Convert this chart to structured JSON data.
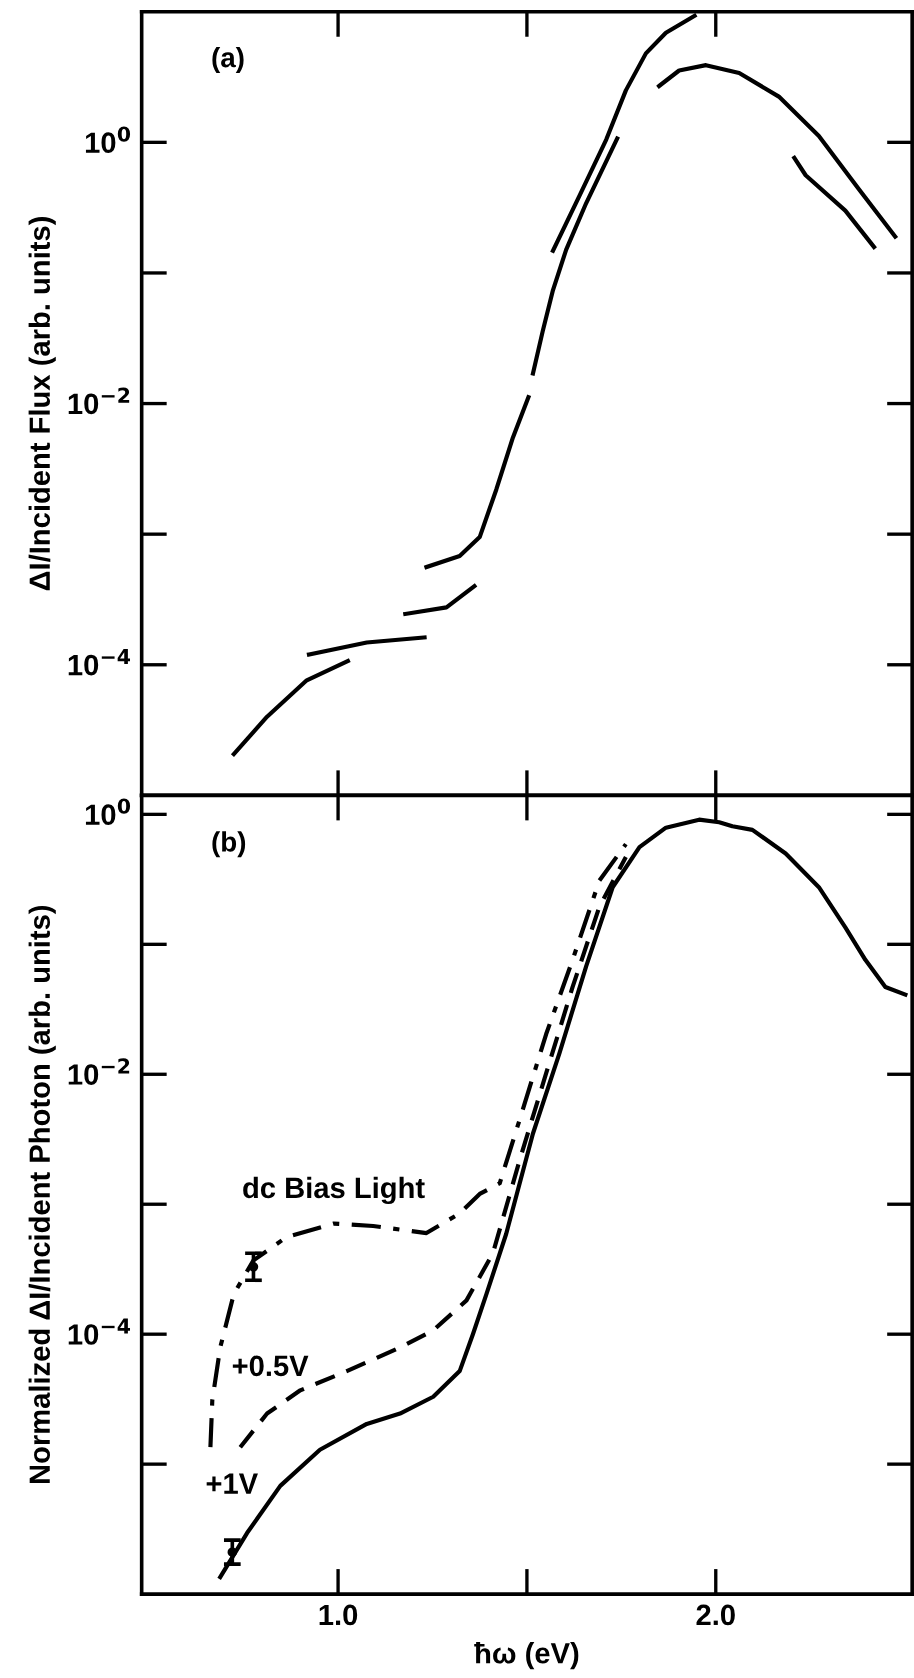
{
  "chart_data": [
    {
      "type": "line",
      "ylabel": "ΔI/Incident Flux (arb. units)",
      "log": "y",
      "xlim": [
        0.48,
        2.52
      ],
      "ylim": [
        1e-05,
        10
      ],
      "xticks": [
        {
          "value": 1.0,
          "label": null
        },
        {
          "value": 1.5,
          "label": null
        },
        {
          "value": 2.0,
          "label": null
        }
      ],
      "yticks": [
        {
          "value": 1,
          "label": "10$^{0}$"
        },
        {
          "value": 0.1,
          "label": null
        },
        {
          "value": 0.01,
          "label": "10$^{−2}$"
        },
        {
          "value": 0.001,
          "label": null
        },
        {
          "value": 0.0001,
          "label": "10$^{−4}$"
        }
      ],
      "tick_labels": "y",
      "grid": false,
      "legend": false,
      "annotations": [
        "(a)"
      ],
      "series": [
        {
          "color": "#000000",
          "line_style": "solid",
          "x": [
            0.724,
            0.812,
            0.917,
            1.026
          ],
          "values": [
            2.07e-05,
            4e-05,
            7.6e-05,
            0.000107
          ]
        },
        {
          "color": "#000000",
          "line_style": "solid",
          "x": [
            0.923,
            1.076,
            1.229
          ],
          "values": [
            0.00012,
            0.000148,
            0.000162
          ]
        },
        {
          "color": "#000000",
          "line_style": "solid",
          "x": [
            1.178,
            1.287,
            1.361
          ],
          "values": [
            0.000245,
            0.000275,
            0.0004
          ]
        },
        {
          "color": "#000000",
          "line_style": "solid",
          "x": [
            1.234,
            1.322,
            1.375,
            1.419,
            1.463,
            1.504
          ],
          "values": [
            0.00056,
            0.00068,
            0.00095,
            0.0022,
            0.0055,
            0.0112
          ]
        },
        {
          "color": "#000000",
          "line_style": "solid",
          "x": [
            1.516,
            1.542,
            1.569,
            1.604,
            1.657,
            1.739
          ],
          "values": [
            0.017,
            0.036,
            0.074,
            0.151,
            0.343,
            1.07
          ]
        },
        {
          "color": "#000000",
          "line_style": "solid",
          "x": [
            1.569,
            1.639,
            1.71,
            1.762,
            1.815,
            1.868,
            1.944
          ],
          "values": [
            0.148,
            0.389,
            1.05,
            2.5,
            4.8,
            6.9,
            9.3
          ]
        },
        {
          "color": "#000000",
          "line_style": "solid",
          "x": [
            1.85,
            1.903,
            1.974,
            2.062,
            2.167,
            2.273,
            2.379,
            2.475
          ],
          "values": [
            2.7,
            3.55,
            3.9,
            3.4,
            2.24,
            1.12,
            0.437,
            0.19
          ]
        },
        {
          "color": "#000000",
          "line_style": "solid",
          "x": [
            2.208,
            2.238,
            2.343,
            2.419
          ],
          "values": [
            0.76,
            0.56,
            0.3,
            0.158
          ]
        }
      ]
    },
    {
      "type": "line",
      "xlabel": "ħω (eV)",
      "ylabel": "Normalized ΔI/Incident Photon (arb. units)",
      "log": "y",
      "xlim": [
        0.48,
        2.52
      ],
      "ylim": [
        1e-06,
        1.4
      ],
      "xticks": [
        {
          "value": 1.0,
          "label": "1.0"
        },
        {
          "value": 1.5,
          "label": null
        },
        {
          "value": 2.0,
          "label": "2.0"
        }
      ],
      "yticks": [
        {
          "value": 1,
          "label": "10$^{0}$"
        },
        {
          "value": 0.1,
          "label": null
        },
        {
          "value": 0.01,
          "label": "10$^{−2}$"
        },
        {
          "value": 0.001,
          "label": null
        },
        {
          "value": 0.0001,
          "label": "10$^{−4}$"
        },
        {
          "value": 1e-05,
          "label": null
        }
      ],
      "grid": false,
      "legend": false,
      "annotations": [
        "(b)",
        {
          "text": "dc Bias Light",
          "x": 0.988,
          "y": 0.00071
        },
        {
          "text": "+0.5V",
          "x": 0.9,
          "y": 3.7e-05
        },
        {
          "text": "+1V",
          "x": 0.759,
          "y": 2.95e-06
        }
      ],
      "series": [
        {
          "color": "#000000",
          "line_style": "solid",
          "x": [
            0.688,
            0.759,
            0.847,
            0.952,
            1.076,
            1.164,
            1.252,
            1.322,
            1.357,
            1.393,
            1.445,
            1.516,
            1.586,
            1.657,
            1.727,
            1.798,
            1.868,
            1.956,
            2.009,
            2.044,
            2.097,
            2.185,
            2.273,
            2.343,
            2.396,
            2.449,
            2.502
          ],
          "values": [
            1.35e-06,
            2.95e-06,
            6.8e-06,
            1.29e-05,
            2.04e-05,
            2.45e-05,
            3.3e-05,
            5.2e-05,
            0.0001,
            0.000204,
            0.00059,
            0.0035,
            0.0145,
            0.068,
            0.275,
            0.56,
            0.79,
            0.91,
            0.87,
            0.81,
            0.76,
            0.5,
            0.275,
            0.135,
            0.076,
            0.047,
            0.041
          ]
        },
        {
          "color": "#000000",
          "line_style": "dashed",
          "x": [
            0.741,
            0.812,
            0.9,
            1.023,
            1.164,
            1.252,
            1.34,
            1.41,
            1.481,
            1.551,
            1.621,
            1.692,
            1.762
          ],
          "values": [
            1.35e-05,
            2.45e-05,
            3.7e-05,
            5.2e-05,
            7.9e-05,
            0.000107,
            0.000182,
            0.00042,
            0.0022,
            0.0102,
            0.047,
            0.195,
            0.47
          ]
        },
        {
          "color": "#000000",
          "line_style": "dashdot",
          "x": [
            0.662,
            0.667,
            0.688,
            0.724,
            0.776,
            0.864,
            0.988,
            1.093,
            1.234,
            1.322,
            1.375,
            1.428,
            1.481,
            1.551,
            1.621,
            1.692,
            1.762
          ],
          "values": [
            1.35e-05,
            3.1e-05,
            7.9e-05,
            0.000204,
            0.00037,
            0.00056,
            0.00071,
            0.00068,
            0.0006,
            0.00085,
            0.0012,
            0.00145,
            0.0045,
            0.0204,
            0.076,
            0.31,
            0.59
          ]
        },
        {
          "type": "scatter",
          "marker": "circle",
          "color": "#000000",
          "x": [
            0.776,
            0.72
          ],
          "values": [
            0.00033,
            2.1e-06
          ],
          "errors": [
            [
              0.00026,
              0.00042
            ],
            [
              1.7e-06,
              2.6e-06
            ]
          ]
        }
      ]
    }
  ]
}
